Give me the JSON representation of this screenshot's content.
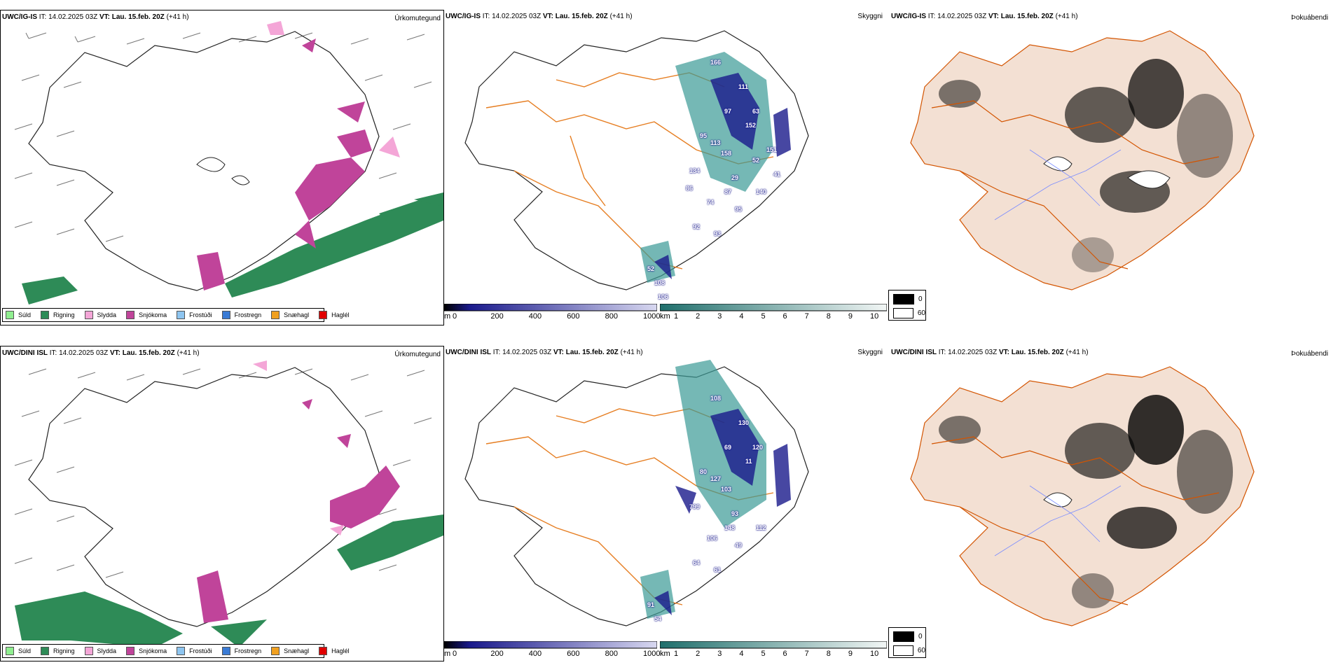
{
  "colors": {
    "suld": "#90ee90",
    "rigning": "#2e8b57",
    "slydda": "#f4a6d7",
    "snjokoma": "#c0449a",
    "frostudi": "#8ec5f0",
    "frostregn": "#3a7bd5",
    "snaehagl": "#f0a020",
    "haglel": "#e00000",
    "roads": "#e67e22",
    "land": "#f3e0d3",
    "elev": "#1a1a8c",
    "vis": "#3a9a96"
  },
  "rows": [
    {
      "model": "UWC/IG-IS",
      "it_label": "IT:",
      "it_value": "14.02.2025 03Z",
      "vt_label": "VT:",
      "vt_value": "Lau. 15.feb. 20Z",
      "lead": "(+41 h)",
      "panel1_type": "Úrkomutegund",
      "panel2_type": "Skyggni",
      "panel3_type": "Þokuábendi",
      "vis_labels": [
        "166",
        "111",
        "97",
        "63",
        "152",
        "95",
        "113",
        "158",
        "134",
        "29",
        "87",
        "140",
        "74",
        "95",
        "92",
        "93",
        "52",
        "108",
        "106",
        "52",
        "151",
        "86",
        "41"
      ]
    },
    {
      "model": "UWC/DINI ISL",
      "it_label": "IT:",
      "it_value": "14.02.2025 03Z",
      "vt_label": "VT:",
      "vt_value": "Lau. 15.feb. 20Z",
      "lead": "(+41 h)",
      "panel1_type": "Úrkomutegund",
      "panel2_type": "Skyggni",
      "panel3_type": "Þokuábendi",
      "vis_labels": [
        "108",
        "130",
        "69",
        "120",
        "11",
        "80",
        "127",
        "103",
        "799",
        "93",
        "148",
        "112",
        "106",
        "49",
        "64",
        "61",
        "91",
        "54"
      ]
    }
  ],
  "precip_legend": [
    {
      "label": "Súld",
      "color_key": "suld"
    },
    {
      "label": "Rigning",
      "color_key": "rigning"
    },
    {
      "label": "Slydda",
      "color_key": "slydda"
    },
    {
      "label": "Snjókoma",
      "color_key": "snjokoma"
    },
    {
      "label": "Frostúði",
      "color_key": "frostudi"
    },
    {
      "label": "Frostregn",
      "color_key": "frostregn"
    },
    {
      "label": "Snæhagl",
      "color_key": "snaehagl"
    },
    {
      "label": "Haglél",
      "color_key": "haglel"
    }
  ],
  "elev_colorbar": {
    "unit": "m",
    "ticks": [
      "0",
      "200",
      "400",
      "600",
      "800",
      "1000"
    ]
  },
  "vis_colorbar": {
    "unit": "km",
    "ticks": [
      "1",
      "2",
      "3",
      "4",
      "5",
      "6",
      "7",
      "8",
      "9",
      "10"
    ]
  },
  "fog_legend": {
    "items": [
      "0",
      "60"
    ]
  }
}
